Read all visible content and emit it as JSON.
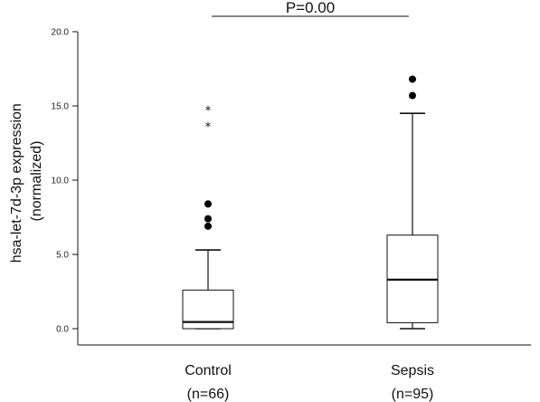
{
  "chart_data": {
    "type": "box",
    "ylabel_line1": "hsa-let-7d-3p expression",
    "ylabel_line2": "(normalized)",
    "ylim": [
      0,
      20
    ],
    "yticks": [
      0,
      5,
      10,
      15,
      20
    ],
    "ytick_labels": [
      "0.0",
      "5.0",
      "10.0",
      "15.0",
      "20.0"
    ],
    "groups": [
      {
        "label": "Control",
        "n_label": "(n=66)",
        "min": 0.0,
        "q1": 0.0,
        "median": 0.45,
        "q3": 2.6,
        "max": 5.3,
        "outliers": [
          6.9,
          7.4,
          8.4
        ],
        "extremes": [
          13.7,
          14.8
        ]
      },
      {
        "label": "Sepsis",
        "n_label": "(n=95)",
        "min": 0.0,
        "q1": 0.4,
        "median": 3.3,
        "q3": 6.3,
        "max": 14.5,
        "outliers": [
          15.7,
          16.8
        ],
        "extremes": []
      }
    ],
    "significance": {
      "label": "P=0.00",
      "between": [
        "Control",
        "Sepsis"
      ]
    },
    "grid": false,
    "legend": "none"
  }
}
